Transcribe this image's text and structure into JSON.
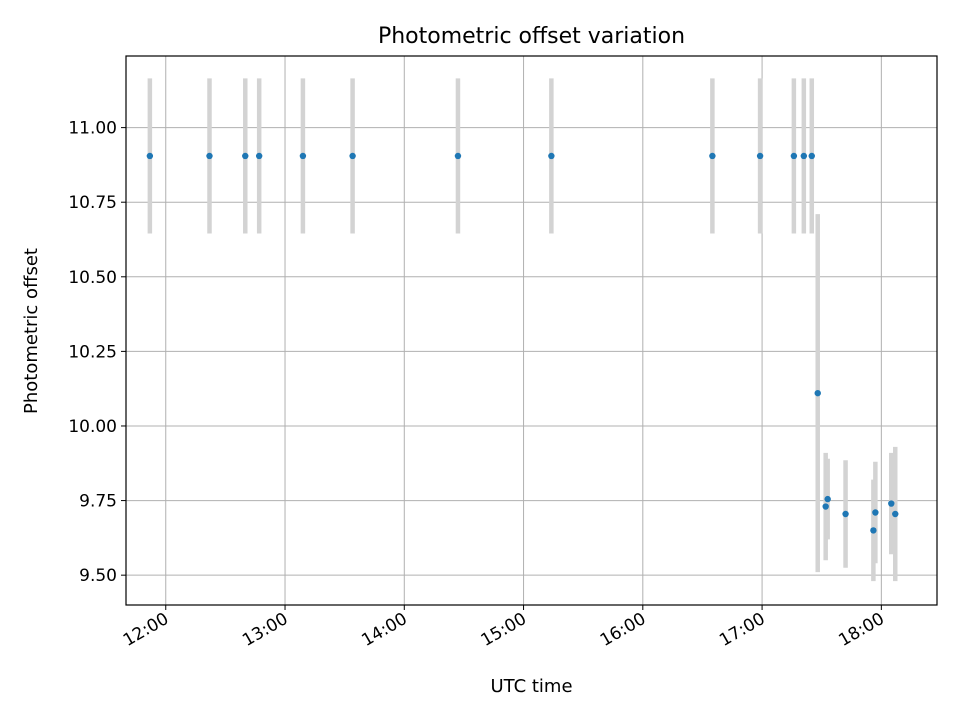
{
  "chart_data": {
    "type": "scatter",
    "title": "Photometric offset variation",
    "xlabel": "UTC time",
    "ylabel": "Photometric offset",
    "xlim": [
      "11:40",
      "18:28"
    ],
    "ylim": [
      9.4,
      11.24
    ],
    "xticks": [
      "12:00",
      "13:00",
      "14:00",
      "15:00",
      "16:00",
      "17:00",
      "18:00"
    ],
    "yticks": [
      "9.50",
      "9.75",
      "10.00",
      "10.25",
      "10.50",
      "10.75",
      "11.00"
    ],
    "grid": true,
    "colors": {
      "point": "#1f77b4",
      "errorbar": "#d3d3d3",
      "grid": "#b0b0b0"
    },
    "points": [
      {
        "t": "11:52",
        "y": 10.905,
        "err": 0.26
      },
      {
        "t": "12:22",
        "y": 10.905,
        "err": 0.26
      },
      {
        "t": "12:40",
        "y": 10.905,
        "err": 0.26
      },
      {
        "t": "12:47",
        "y": 10.905,
        "err": 0.26
      },
      {
        "t": "13:09",
        "y": 10.905,
        "err": 0.26
      },
      {
        "t": "13:34",
        "y": 10.905,
        "err": 0.26
      },
      {
        "t": "14:27",
        "y": 10.905,
        "err": 0.26
      },
      {
        "t": "15:14",
        "y": 10.905,
        "err": 0.26
      },
      {
        "t": "16:35",
        "y": 10.905,
        "err": 0.26
      },
      {
        "t": "16:59",
        "y": 10.905,
        "err": 0.26
      },
      {
        "t": "17:16",
        "y": 10.905,
        "err": 0.26
      },
      {
        "t": "17:21",
        "y": 10.905,
        "err": 0.26
      },
      {
        "t": "17:25",
        "y": 10.905,
        "err": 0.26
      },
      {
        "t": "17:28",
        "y": 10.11,
        "err": 0.6
      },
      {
        "t": "17:32",
        "y": 9.73,
        "err": 0.18
      },
      {
        "t": "17:33",
        "y": 9.755,
        "err": 0.135
      },
      {
        "t": "17:42",
        "y": 9.705,
        "err": 0.18
      },
      {
        "t": "17:56",
        "y": 9.65,
        "err": 0.17
      },
      {
        "t": "17:57",
        "y": 9.71,
        "err": 0.17
      },
      {
        "t": "18:05",
        "y": 9.74,
        "err": 0.17
      },
      {
        "t": "18:07",
        "y": 9.705,
        "err": 0.225
      }
    ]
  }
}
